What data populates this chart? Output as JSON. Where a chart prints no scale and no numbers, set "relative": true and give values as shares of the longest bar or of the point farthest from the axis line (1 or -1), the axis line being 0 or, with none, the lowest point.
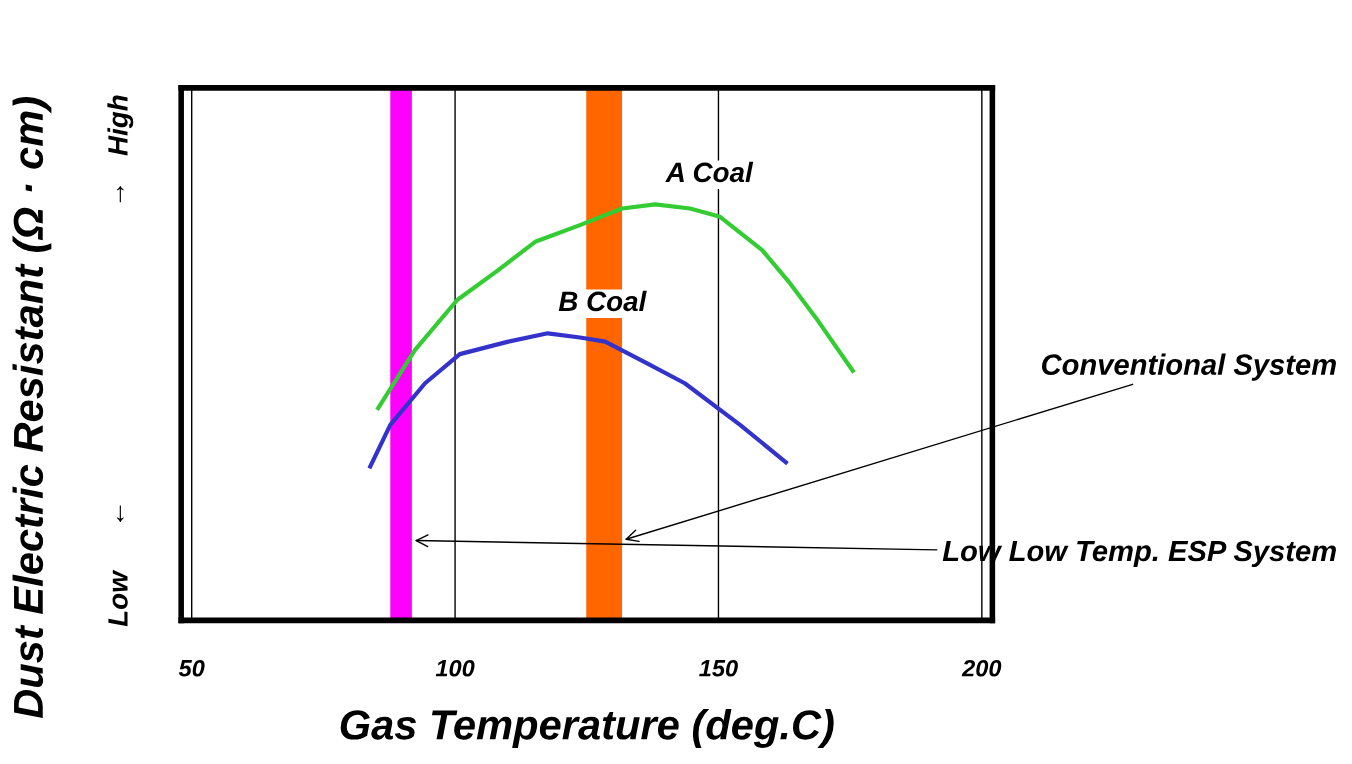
{
  "chart_data": {
    "type": "line",
    "relative": true,
    "xlabel": "Gas Temperature (deg.C)",
    "ylabel": "Dust Electric Resistant (Ω · cm)",
    "xlim": [
      48,
      202
    ],
    "xticks": [
      50,
      100,
      150,
      200
    ],
    "grid": "x",
    "annotations": [
      "Low",
      "↓",
      "↑",
      "High"
    ],
    "series": [
      {
        "name": "A Coal",
        "color": "#33cc33",
        "x": [
          85.4,
          92.4,
          100.4,
          108.0,
          115.2,
          123.7,
          131.7,
          138.0,
          144.6,
          150.3,
          158.3,
          163.6,
          168.9,
          175.5
        ],
        "values": [
          0.51,
          0.65,
          0.77,
          0.84,
          0.91,
          0.95,
          0.99,
          1.0,
          0.99,
          0.97,
          0.89,
          0.81,
          0.72,
          0.6
        ]
      },
      {
        "name": "B Coal",
        "color": "#3333cc",
        "x": [
          83.9,
          87.7,
          94.3,
          100.9,
          110.1,
          117.6,
          123.7,
          128.5,
          136.1,
          143.6,
          154.1,
          162.8
        ],
        "values": [
          0.37,
          0.47,
          0.57,
          0.64,
          0.67,
          0.69,
          0.68,
          0.67,
          0.62,
          0.57,
          0.47,
          0.38
        ]
      }
    ],
    "bands": [
      {
        "axis": "x",
        "from": 87.7,
        "to": 91.8,
        "color": "#ff00ff",
        "label": "Low Low Temp. ESP System"
      },
      {
        "axis": "x",
        "from": 124.9,
        "to": 131.7,
        "color": "#ff6600",
        "label": "Conventional System"
      }
    ]
  }
}
